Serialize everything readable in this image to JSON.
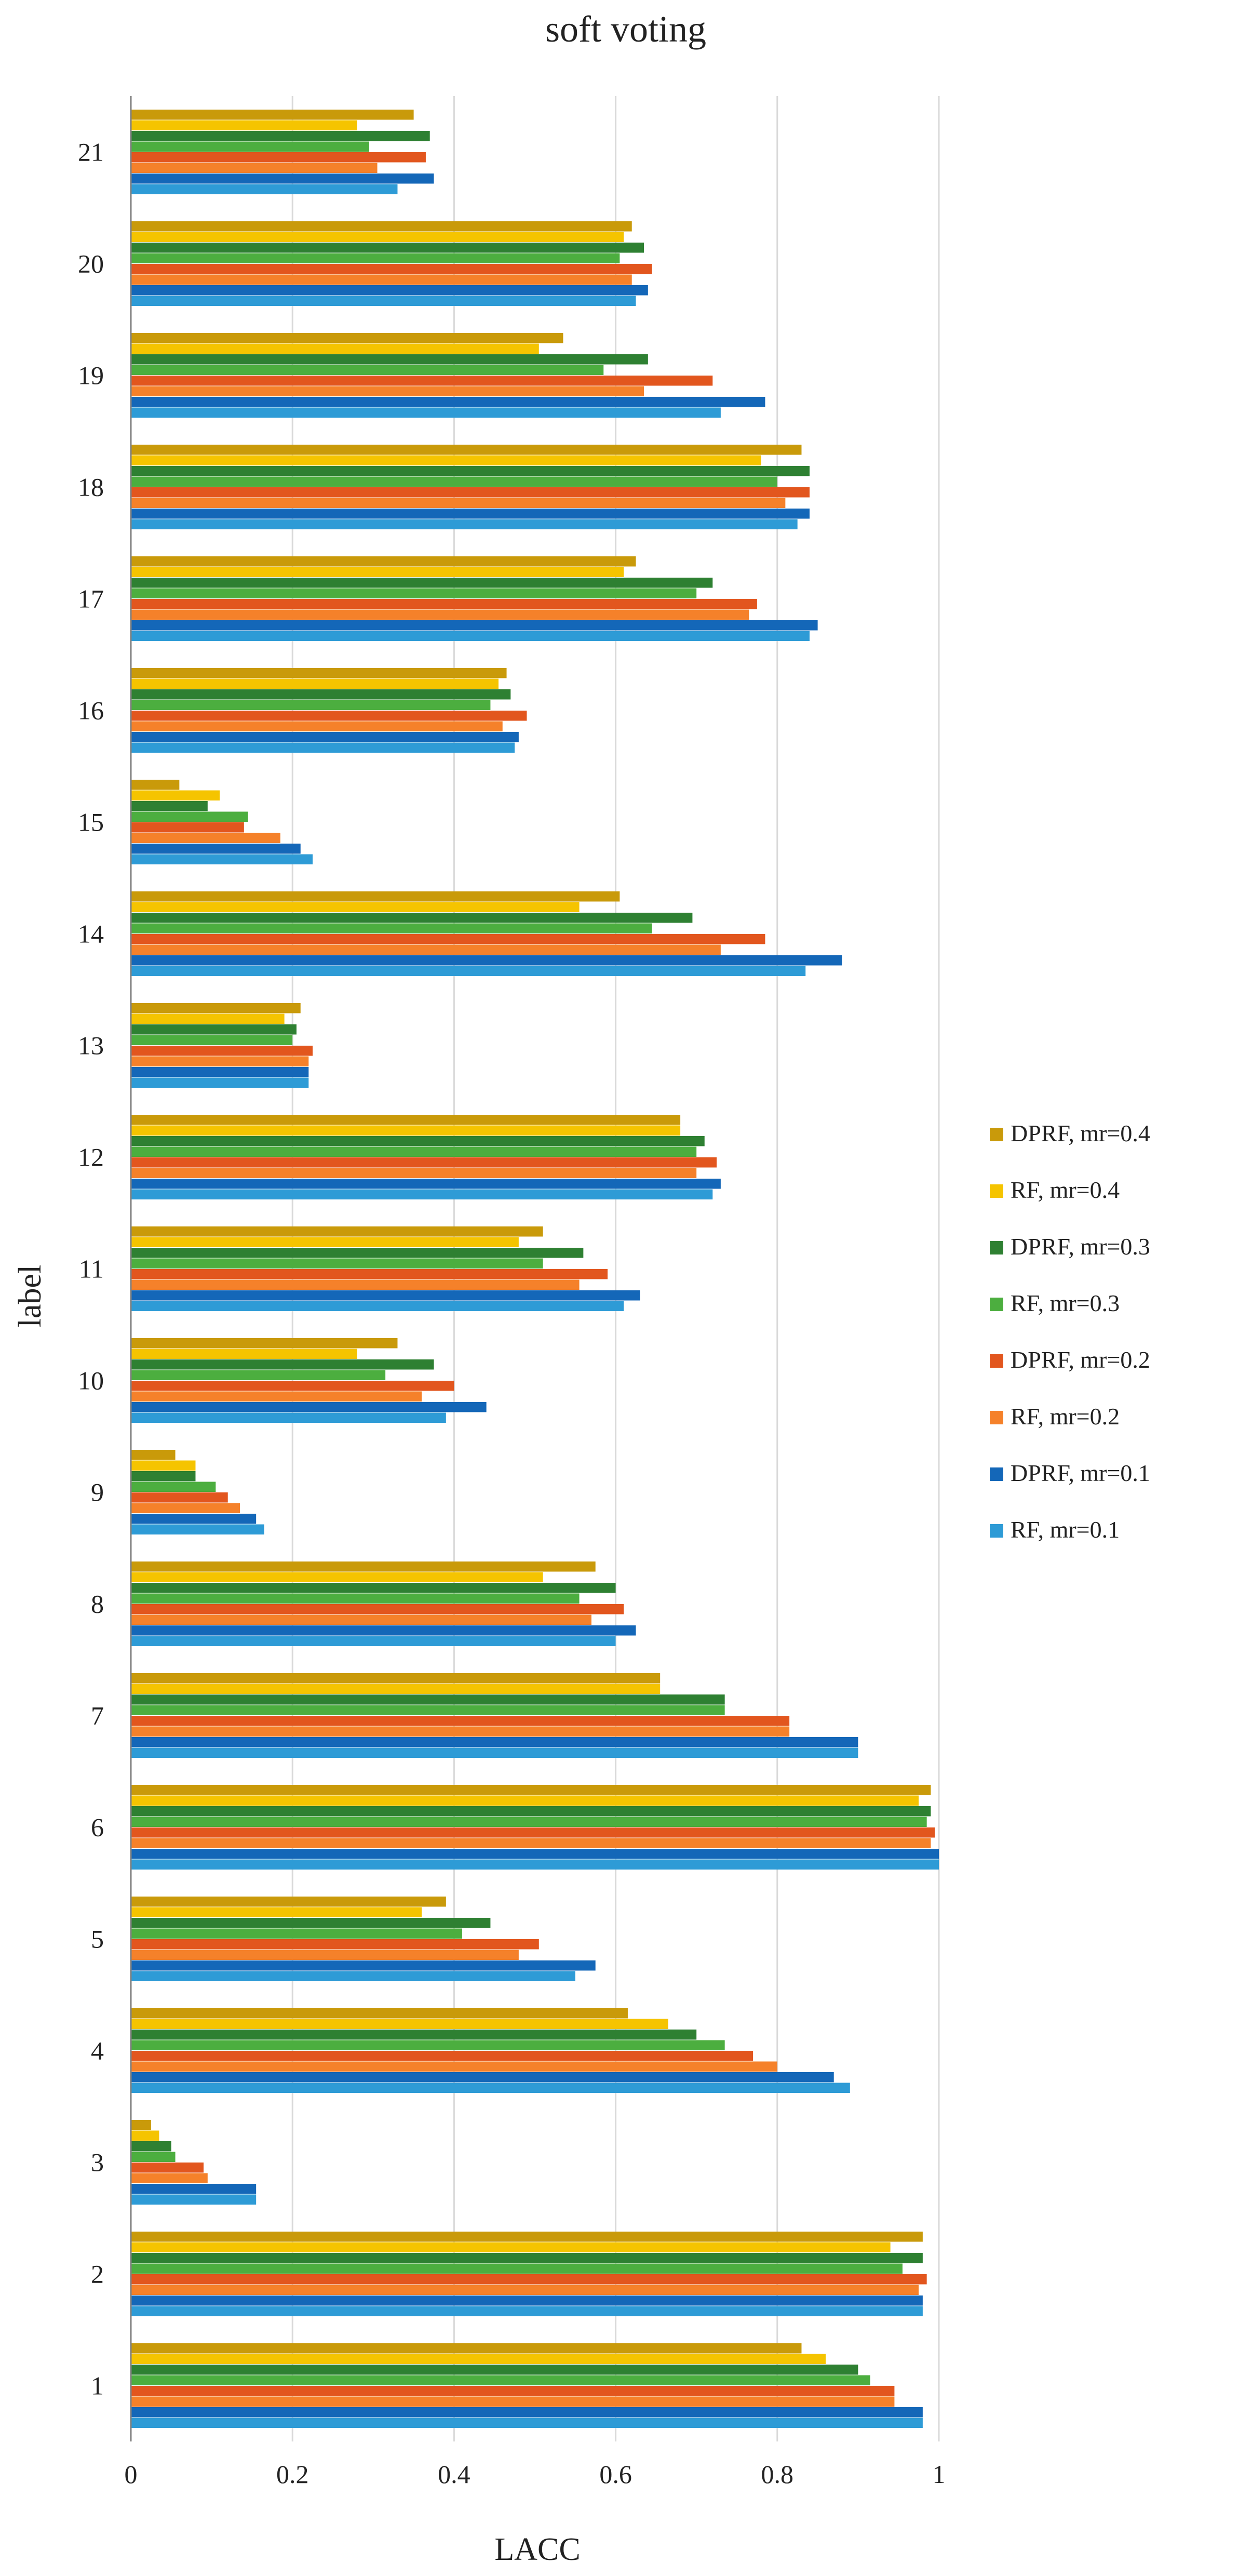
{
  "chart_data": {
    "type": "bar",
    "orientation": "horizontal",
    "title": "soft voting",
    "xlabel": "LACC",
    "ylabel": "label",
    "xlim": [
      0,
      1
    ],
    "xticks": [
      0,
      0.2,
      0.4,
      0.6,
      0.8,
      1
    ],
    "xtick_labels": [
      "0",
      "0.2",
      "0.4",
      "0.6",
      "0.8",
      "1"
    ],
    "grid": "vertical",
    "legend_position": "right",
    "categories": [
      "1",
      "2",
      "3",
      "4",
      "5",
      "6",
      "7",
      "8",
      "9",
      "10",
      "11",
      "12",
      "13",
      "14",
      "15",
      "16",
      "17",
      "18",
      "19",
      "20",
      "21"
    ],
    "series": [
      {
        "name": "RF, mr=0.1",
        "color": "#2E9BD6",
        "values": [
          0.98,
          0.98,
          0.155,
          0.89,
          0.55,
          1.0,
          0.9,
          0.6,
          0.165,
          0.39,
          0.61,
          0.72,
          0.22,
          0.835,
          0.225,
          0.475,
          0.84,
          0.825,
          0.73,
          0.625,
          0.33
        ]
      },
      {
        "name": "DPRF, mr=0.1",
        "color": "#1467B8",
        "values": [
          0.98,
          0.98,
          0.155,
          0.87,
          0.575,
          1.0,
          0.9,
          0.625,
          0.155,
          0.44,
          0.63,
          0.73,
          0.22,
          0.88,
          0.21,
          0.48,
          0.85,
          0.84,
          0.785,
          0.64,
          0.375
        ]
      },
      {
        "name": "RF, mr=0.2",
        "color": "#F5812A",
        "values": [
          0.945,
          0.975,
          0.095,
          0.8,
          0.48,
          0.99,
          0.815,
          0.57,
          0.135,
          0.36,
          0.555,
          0.7,
          0.22,
          0.73,
          0.185,
          0.46,
          0.765,
          0.81,
          0.635,
          0.62,
          0.305
        ]
      },
      {
        "name": "DPRF, mr=0.2",
        "color": "#E2561E",
        "values": [
          0.945,
          0.985,
          0.09,
          0.77,
          0.505,
          0.995,
          0.815,
          0.61,
          0.12,
          0.4,
          0.59,
          0.725,
          0.225,
          0.785,
          0.14,
          0.49,
          0.775,
          0.84,
          0.72,
          0.645,
          0.365
        ]
      },
      {
        "name": "RF, mr=0.3",
        "color": "#4CAE3F",
        "values": [
          0.915,
          0.955,
          0.055,
          0.735,
          0.41,
          0.985,
          0.735,
          0.555,
          0.105,
          0.315,
          0.51,
          0.7,
          0.2,
          0.645,
          0.145,
          0.445,
          0.7,
          0.8,
          0.585,
          0.605,
          0.295
        ]
      },
      {
        "name": "DPRF, mr=0.3",
        "color": "#2E8032",
        "values": [
          0.9,
          0.98,
          0.05,
          0.7,
          0.445,
          0.99,
          0.735,
          0.6,
          0.08,
          0.375,
          0.56,
          0.71,
          0.205,
          0.695,
          0.095,
          0.47,
          0.72,
          0.84,
          0.64,
          0.635,
          0.37
        ]
      },
      {
        "name": "RF, mr=0.4",
        "color": "#F5C400",
        "values": [
          0.86,
          0.94,
          0.035,
          0.665,
          0.36,
          0.975,
          0.655,
          0.51,
          0.08,
          0.28,
          0.48,
          0.68,
          0.19,
          0.555,
          0.11,
          0.455,
          0.61,
          0.78,
          0.505,
          0.61,
          0.28
        ]
      },
      {
        "name": "DPRF, mr=0.4",
        "color": "#C99A0A",
        "values": [
          0.83,
          0.98,
          0.025,
          0.615,
          0.39,
          0.99,
          0.655,
          0.575,
          0.055,
          0.33,
          0.51,
          0.68,
          0.21,
          0.605,
          0.06,
          0.465,
          0.625,
          0.83,
          0.535,
          0.62,
          0.35
        ]
      }
    ]
  }
}
